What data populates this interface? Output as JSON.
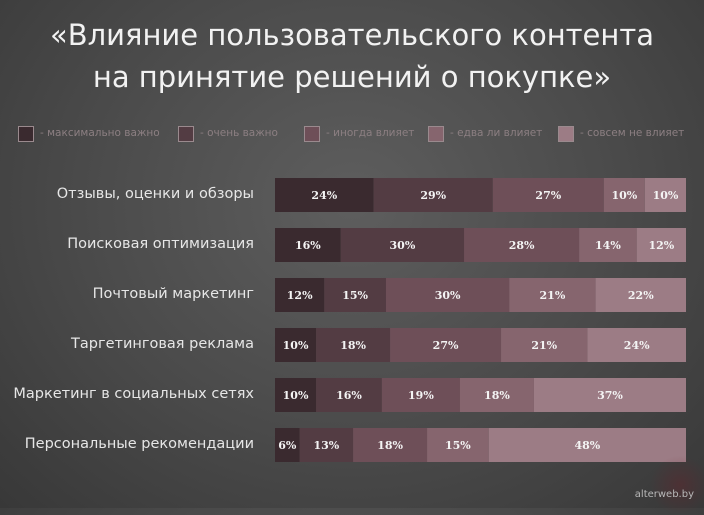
{
  "chart_data": {
    "type": "bar",
    "stacked": true,
    "orientation": "horizontal",
    "title_line1": "«Влияние пользовательского контента",
    "title_line2": "на принятие решений о покупке»",
    "categories": [
      "Отзывы, оценки и обзоры",
      "Поисковая оптимизация",
      "Почтовый маркетинг",
      "Таргетинговая реклама",
      "Маркетинг в социальных сетях",
      "Персональные рекомендации"
    ],
    "series": [
      {
        "name": "- максимально важно",
        "color": "#3a2a2f",
        "values": [
          24,
          16,
          12,
          10,
          10,
          6
        ]
      },
      {
        "name": "- очень важно",
        "color": "#533c43",
        "values": [
          29,
          30,
          15,
          18,
          16,
          13
        ]
      },
      {
        "name": "- иногда влияет",
        "color": "#6e4f58",
        "values": [
          27,
          28,
          30,
          27,
          19,
          18
        ]
      },
      {
        "name": "- едва ли влияет",
        "color": "#86656e",
        "values": [
          10,
          14,
          21,
          21,
          18,
          15
        ]
      },
      {
        "name": "- совсем не влияет",
        "color": "#9c7c85",
        "values": [
          10,
          12,
          22,
          24,
          37,
          48
        ]
      }
    ],
    "value_suffix": "%",
    "xlim": [
      0,
      100
    ],
    "legend_position": "top",
    "grid": false
  },
  "footer": "alterweb.by"
}
